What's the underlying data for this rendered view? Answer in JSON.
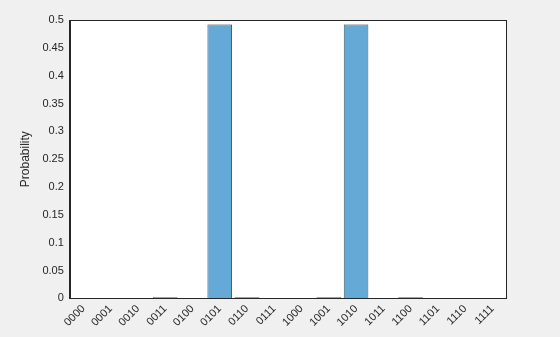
{
  "chart_data": {
    "type": "bar",
    "y_label": "Probability",
    "categories": [
      "0000",
      "0001",
      "0010",
      "0011",
      "0100",
      "0101",
      "0110",
      "0111",
      "1000",
      "1001",
      "1010",
      "1011",
      "1100",
      "1101",
      "1110",
      "1111"
    ],
    "values": [
      0,
      0,
      0,
      0.002,
      0,
      0.492,
      0.002,
      0,
      0,
      0.002,
      0.492,
      0,
      0.002,
      0,
      0,
      0
    ],
    "color": "#65a9d7",
    "ylim": [
      0,
      0.5
    ],
    "yticks": [
      0,
      0.05,
      0.1,
      0.15,
      0.2,
      0.25,
      0.3,
      0.35,
      0.4,
      0.45,
      0.5
    ],
    "grid": false
  }
}
